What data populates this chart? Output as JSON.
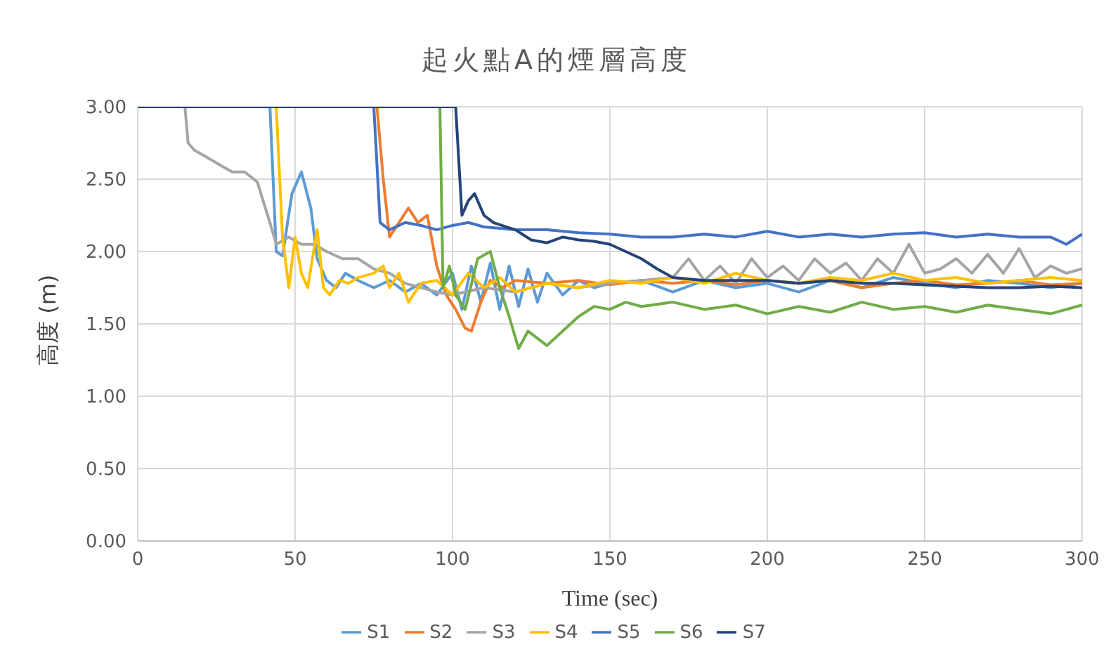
{
  "chart_data": {
    "type": "line",
    "title": "起火點A的煙層高度",
    "xlabel": "Time (sec)",
    "ylabel": "高度 (m)",
    "xlim": [
      0,
      300
    ],
    "xticks": [
      0,
      50,
      100,
      150,
      200,
      250,
      300
    ],
    "ylim": [
      0,
      3
    ],
    "yticks": [
      {
        "value": 0,
        "label": "0.00"
      },
      {
        "value": 0.5,
        "label": "0.50"
      },
      {
        "value": 1,
        "label": "1.00"
      },
      {
        "value": 1.5,
        "label": "1.50"
      },
      {
        "value": 2,
        "label": "2.00"
      },
      {
        "value": 2.5,
        "label": "2.50"
      },
      {
        "value": 3,
        "label": "3.00"
      }
    ],
    "grid": true,
    "legend": "bottom",
    "marker": "none",
    "line_style": "solid",
    "series": [
      {
        "name": "S1",
        "color": "#5b9bd5",
        "x": [
          0,
          42,
          44,
          46,
          49,
          52,
          55,
          57,
          60,
          63,
          66,
          70,
          75,
          80,
          85,
          90,
          95,
          100,
          103,
          106,
          109,
          112,
          115,
          118,
          121,
          124,
          127,
          130,
          135,
          140,
          145,
          150,
          160,
          170,
          180,
          190,
          200,
          210,
          220,
          230,
          240,
          250,
          260,
          270,
          280,
          290,
          300
        ],
        "values": [
          3,
          3,
          2,
          1.97,
          2.4,
          2.55,
          2.3,
          1.95,
          1.8,
          1.75,
          1.85,
          1.8,
          1.75,
          1.8,
          1.72,
          1.78,
          1.7,
          1.85,
          1.6,
          1.9,
          1.65,
          1.92,
          1.6,
          1.9,
          1.62,
          1.88,
          1.65,
          1.85,
          1.7,
          1.8,
          1.75,
          1.78,
          1.8,
          1.72,
          1.8,
          1.75,
          1.78,
          1.72,
          1.8,
          1.75,
          1.82,
          1.78,
          1.75,
          1.8,
          1.78,
          1.75,
          1.78
        ]
      },
      {
        "name": "S2",
        "color": "#ed7d31",
        "x": [
          0,
          76,
          78,
          80,
          83,
          86,
          89,
          92,
          95,
          98,
          101,
          104,
          106,
          109,
          112,
          116,
          120,
          130,
          140,
          150,
          160,
          170,
          180,
          190,
          200,
          210,
          220,
          230,
          240,
          250,
          260,
          270,
          280,
          290,
          300
        ],
        "values": [
          3,
          3,
          2.5,
          2.1,
          2.2,
          2.3,
          2.2,
          2.25,
          1.9,
          1.7,
          1.6,
          1.47,
          1.45,
          1.65,
          1.8,
          1.75,
          1.8,
          1.78,
          1.8,
          1.77,
          1.8,
          1.78,
          1.8,
          1.77,
          1.8,
          1.78,
          1.8,
          1.75,
          1.78,
          1.8,
          1.77,
          1.78,
          1.8,
          1.77,
          1.78
        ]
      },
      {
        "name": "S3",
        "color": "#a5a5a5",
        "x": [
          0,
          15,
          16,
          18,
          22,
          26,
          30,
          34,
          38,
          42,
          44,
          48,
          52,
          56,
          60,
          65,
          70,
          75,
          80,
          85,
          90,
          95,
          100,
          110,
          120,
          130,
          140,
          150,
          160,
          170,
          175,
          180,
          185,
          190,
          195,
          200,
          205,
          210,
          215,
          220,
          225,
          230,
          235,
          240,
          245,
          250,
          255,
          260,
          265,
          270,
          275,
          280,
          285,
          290,
          295,
          300
        ],
        "values": [
          3,
          3,
          2.75,
          2.7,
          2.65,
          2.6,
          2.55,
          2.55,
          2.48,
          2.2,
          2.05,
          2.1,
          2.05,
          2.05,
          2,
          1.95,
          1.95,
          1.88,
          1.85,
          1.78,
          1.75,
          1.72,
          1.7,
          1.75,
          1.72,
          1.78,
          1.75,
          1.78,
          1.8,
          1.82,
          1.95,
          1.8,
          1.9,
          1.78,
          1.95,
          1.82,
          1.9,
          1.8,
          1.95,
          1.85,
          1.92,
          1.8,
          1.95,
          1.85,
          2.05,
          1.85,
          1.88,
          1.95,
          1.85,
          1.98,
          1.85,
          2.02,
          1.82,
          1.9,
          1.85,
          1.88
        ]
      },
      {
        "name": "S4",
        "color": "#ffc000",
        "x": [
          0,
          44,
          46,
          48,
          50,
          52,
          54,
          57,
          59,
          61,
          64,
          67,
          70,
          75,
          78,
          80,
          83,
          86,
          90,
          95,
          100,
          105,
          110,
          115,
          120,
          130,
          140,
          150,
          160,
          170,
          180,
          190,
          200,
          210,
          220,
          230,
          240,
          250,
          260,
          270,
          280,
          290,
          300
        ],
        "values": [
          3,
          3,
          2.1,
          1.75,
          2.1,
          1.85,
          1.75,
          2.15,
          1.75,
          1.7,
          1.8,
          1.78,
          1.82,
          1.85,
          1.9,
          1.75,
          1.85,
          1.65,
          1.78,
          1.8,
          1.7,
          1.85,
          1.75,
          1.82,
          1.72,
          1.78,
          1.75,
          1.8,
          1.78,
          1.82,
          1.78,
          1.85,
          1.8,
          1.78,
          1.82,
          1.8,
          1.85,
          1.8,
          1.82,
          1.78,
          1.8,
          1.82,
          1.8
        ]
      },
      {
        "name": "S5",
        "color": "#4472c4",
        "x": [
          0,
          75,
          77,
          80,
          85,
          90,
          95,
          100,
          105,
          110,
          120,
          130,
          140,
          150,
          160,
          170,
          180,
          190,
          200,
          210,
          220,
          230,
          240,
          250,
          260,
          270,
          280,
          290,
          295,
          300
        ],
        "values": [
          3,
          3,
          2.2,
          2.15,
          2.2,
          2.18,
          2.15,
          2.18,
          2.2,
          2.17,
          2.15,
          2.15,
          2.13,
          2.12,
          2.1,
          2.1,
          2.12,
          2.1,
          2.14,
          2.1,
          2.12,
          2.1,
          2.12,
          2.13,
          2.1,
          2.12,
          2.1,
          2.1,
          2.05,
          2.12
        ]
      },
      {
        "name": "S6",
        "color": "#70ad47",
        "x": [
          0,
          96,
          97,
          99,
          101,
          104,
          108,
          112,
          115,
          118,
          121,
          124,
          127,
          130,
          135,
          140,
          145,
          150,
          155,
          160,
          170,
          180,
          190,
          200,
          210,
          220,
          230,
          240,
          250,
          260,
          270,
          280,
          290,
          300
        ],
        "values": [
          3,
          3,
          1.75,
          1.9,
          1.7,
          1.6,
          1.95,
          2,
          1.75,
          1.55,
          1.33,
          1.45,
          1.4,
          1.35,
          1.45,
          1.55,
          1.62,
          1.6,
          1.65,
          1.62,
          1.65,
          1.6,
          1.63,
          1.57,
          1.62,
          1.58,
          1.65,
          1.6,
          1.62,
          1.58,
          1.63,
          1.6,
          1.57,
          1.63
        ]
      },
      {
        "name": "S7",
        "color": "#264478",
        "x": [
          0,
          101,
          103,
          105,
          107,
          110,
          113,
          117,
          120,
          125,
          130,
          135,
          140,
          145,
          150,
          155,
          160,
          165,
          170,
          180,
          190,
          200,
          210,
          220,
          230,
          240,
          250,
          260,
          270,
          280,
          290,
          300
        ],
        "values": [
          3,
          3,
          2.25,
          2.35,
          2.4,
          2.25,
          2.2,
          2.17,
          2.15,
          2.08,
          2.06,
          2.1,
          2.08,
          2.07,
          2.05,
          2,
          1.95,
          1.88,
          1.82,
          1.8,
          1.8,
          1.8,
          1.78,
          1.8,
          1.78,
          1.78,
          1.77,
          1.76,
          1.75,
          1.75,
          1.76,
          1.75
        ]
      }
    ]
  }
}
